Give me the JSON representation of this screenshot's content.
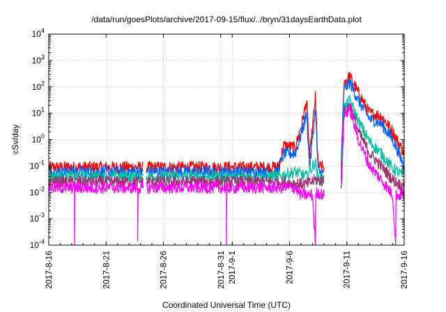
{
  "chart_data": {
    "type": "line",
    "title": "/data/run/goesPlots/archive/2017-09-15/flux/../bryn/31daysEarthData.plot",
    "xlabel": "Coordinated Universal Time (UTC)",
    "ylabel": "cSv/day",
    "y_scale": "log",
    "ylim": [
      0.0001,
      10000
    ],
    "xlim": [
      "2017-08-16",
      "2017-09-16"
    ],
    "grid": true,
    "legend": "none",
    "x_ticks": [
      "2017-8-16",
      "2017-8-21",
      "2017-8-26",
      "2017-8-31",
      "2017-9-1",
      "2017-9-6",
      "2017-9-11",
      "2017-9-16"
    ],
    "x_tick_dates": [
      "2017-08-16",
      "2017-08-21",
      "2017-08-26",
      "2017-08-31",
      "2017-09-01",
      "2017-09-06",
      "2017-09-11",
      "2017-09-16"
    ],
    "y_ticks": [
      {
        "base": "10",
        "exp": "-4"
      },
      {
        "base": "10",
        "exp": "-3"
      },
      {
        "base": "10",
        "exp": "-2"
      },
      {
        "base": "10",
        "exp": "-1"
      },
      {
        "base": "10",
        "exp": "0"
      },
      {
        "base": "10",
        "exp": "1"
      },
      {
        "base": "10",
        "exp": "2"
      },
      {
        "base": "10",
        "exp": "3"
      },
      {
        "base": "10",
        "exp": "4"
      }
    ],
    "data_gaps": [
      [
        "2017-08-24 06:00",
        "2017-08-24 12:00"
      ],
      [
        "2017-09-09 00:00",
        "2017-09-10 12:00"
      ]
    ],
    "series": [
      {
        "color": "#ff0000",
        "points": [
          [
            "2017-08-16",
            0.09
          ],
          [
            "2017-09-05",
            0.09
          ],
          [
            "2017-09-05 12:00",
            0.6
          ],
          [
            "2017-09-06 12:00",
            0.5
          ],
          [
            "2017-09-07 00:00",
            3
          ],
          [
            "2017-09-07 12:00",
            30
          ],
          [
            "2017-09-07 18:00",
            0.2
          ],
          [
            "2017-09-08 06:00",
            40
          ],
          [
            "2017-09-08 12:00",
            0.1
          ],
          [
            "2017-09-09",
            0.09
          ],
          [
            "2017-09-10 12:00",
            0.09
          ],
          [
            "2017-09-10 18:00",
            150
          ],
          [
            "2017-09-11 06:00",
            250
          ],
          [
            "2017-09-12",
            60
          ],
          [
            "2017-09-13",
            10
          ],
          [
            "2017-09-14",
            8
          ],
          [
            "2017-09-15",
            2
          ],
          [
            "2017-09-16",
            0.3
          ]
        ]
      },
      {
        "color": "#0060ff",
        "points": [
          [
            "2017-08-16",
            0.06
          ],
          [
            "2017-09-05",
            0.06
          ],
          [
            "2017-09-05 12:00",
            0.3
          ],
          [
            "2017-09-06 12:00",
            0.3
          ],
          [
            "2017-09-07 00:00",
            1.5
          ],
          [
            "2017-09-07 12:00",
            10
          ],
          [
            "2017-09-07 18:00",
            0.08
          ],
          [
            "2017-09-08 06:00",
            15
          ],
          [
            "2017-09-08 12:00",
            0.06
          ],
          [
            "2017-09-09",
            0.05
          ],
          [
            "2017-09-10 12:00",
            0.06
          ],
          [
            "2017-09-10 18:00",
            80
          ],
          [
            "2017-09-11 06:00",
            150
          ],
          [
            "2017-09-12",
            30
          ],
          [
            "2017-09-13",
            6
          ],
          [
            "2017-09-14",
            4
          ],
          [
            "2017-09-15",
            1
          ],
          [
            "2017-09-16",
            0.1
          ]
        ]
      },
      {
        "color": "#00c0a0",
        "points": [
          [
            "2017-08-16",
            0.04
          ],
          [
            "2017-09-05",
            0.04
          ],
          [
            "2017-09-06 12:00",
            0.06
          ],
          [
            "2017-09-07 12:00",
            0.04
          ],
          [
            "2017-09-08 06:00",
            0.15
          ],
          [
            "2017-09-08 12:00",
            0.03
          ],
          [
            "2017-09-10 12:00",
            0.04
          ],
          [
            "2017-09-10 18:00",
            15
          ],
          [
            "2017-09-11 06:00",
            30
          ],
          [
            "2017-09-12",
            5
          ],
          [
            "2017-09-13",
            0.8
          ],
          [
            "2017-09-14",
            0.3
          ],
          [
            "2017-09-15",
            0.08
          ],
          [
            "2017-09-16",
            0.04
          ]
        ]
      },
      {
        "color": "#a03070",
        "points": [
          [
            "2017-08-16",
            0.025
          ],
          [
            "2017-09-05",
            0.025
          ],
          [
            "2017-09-07 12:00",
            0.02
          ],
          [
            "2017-09-08 06:00",
            0.03
          ],
          [
            "2017-09-10 12:00",
            0.02
          ],
          [
            "2017-09-10 18:00",
            10
          ],
          [
            "2017-09-11 06:00",
            20
          ],
          [
            "2017-09-12",
            2
          ],
          [
            "2017-09-13",
            0.3
          ],
          [
            "2017-09-14",
            0.1
          ],
          [
            "2017-09-15",
            0.03
          ],
          [
            "2017-09-16",
            0.015
          ]
        ]
      },
      {
        "color": "#ff00ff",
        "points": [
          [
            "2017-08-16",
            0.015
          ],
          [
            "2017-08-18 06:00",
            0.015
          ],
          [
            "2017-08-18 06:00",
            0.0001
          ],
          [
            "2017-08-18 07:00",
            0.015
          ],
          [
            "2017-08-23 18:00",
            0.015
          ],
          [
            "2017-08-23 18:00",
            0.0001
          ],
          [
            "2017-08-23 19:00",
            0.015
          ],
          [
            "2017-08-31 12:00",
            0.015
          ],
          [
            "2017-08-31 12:00",
            0.0001
          ],
          [
            "2017-08-31 13:00",
            0.015
          ],
          [
            "2017-09-06 12:00",
            0.015
          ],
          [
            "2017-09-07",
            0.008
          ],
          [
            "2017-09-08",
            0.008
          ],
          [
            "2017-09-08 06:00",
            0.0001
          ],
          [
            "2017-09-08 07:00",
            0.01
          ],
          [
            "2017-09-09",
            0.008
          ],
          [
            "2017-09-10 12:00",
            0.012
          ],
          [
            "2017-09-10 18:00",
            8
          ],
          [
            "2017-09-11 06:00",
            15
          ],
          [
            "2017-09-12",
            1
          ],
          [
            "2017-09-13",
            0.1
          ],
          [
            "2017-09-14",
            0.03
          ],
          [
            "2017-09-15",
            0.008
          ],
          [
            "2017-09-15 06:00",
            0.0001
          ],
          [
            "2017-09-15 07:00",
            0.008
          ],
          [
            "2017-09-16",
            0.008
          ]
        ]
      }
    ]
  }
}
